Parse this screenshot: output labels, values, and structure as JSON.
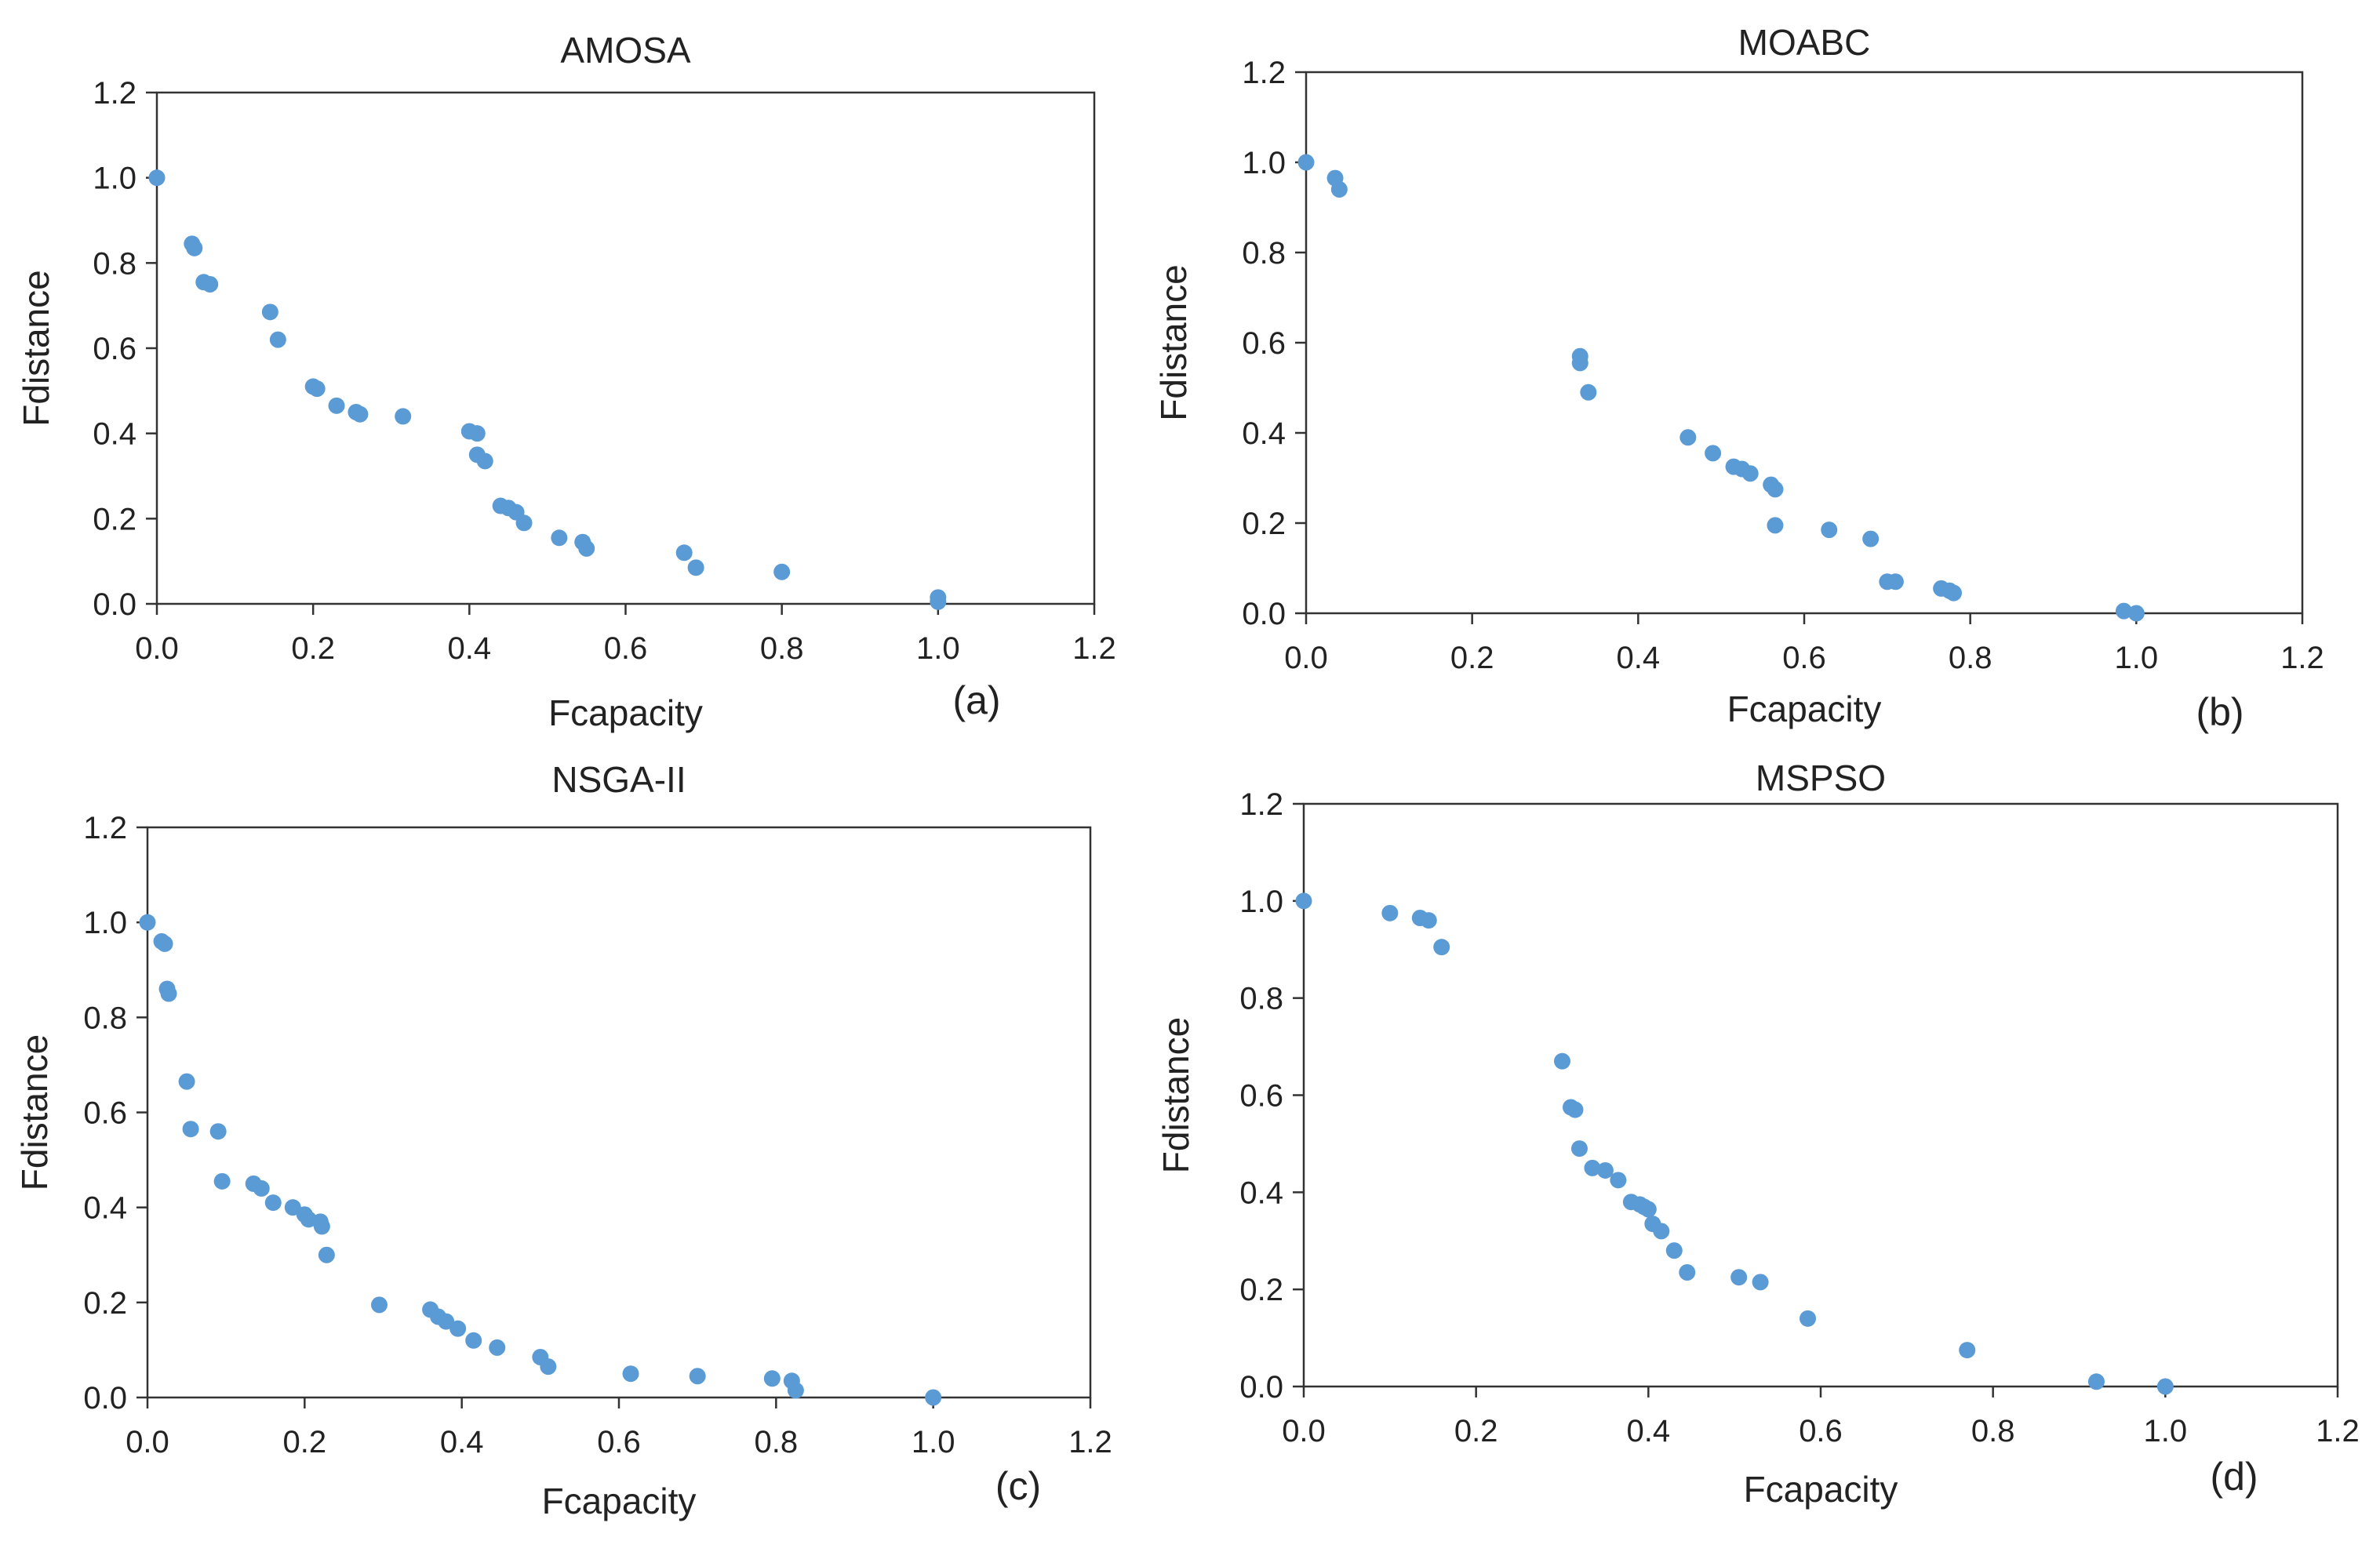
{
  "chart_data": [
    {
      "type": "scatter",
      "title": "AMOSA",
      "xlabel": "Fcapacity",
      "ylabel": "Fdistance",
      "panel_label": "(a)",
      "xlim": [
        0,
        1.2
      ],
      "ylim": [
        0,
        1.2
      ],
      "xticks": [
        "0.0",
        "0.2",
        "0.4",
        "0.6",
        "0.8",
        "1.0",
        "1.2"
      ],
      "yticks": [
        "0.0",
        "0.2",
        "0.4",
        "0.6",
        "0.8",
        "1.0",
        "1.2"
      ],
      "grid": false,
      "point_color": "#5b9bd5",
      "points": [
        [
          0.0,
          1.0
        ],
        [
          0.045,
          0.845
        ],
        [
          0.048,
          0.835
        ],
        [
          0.06,
          0.755
        ],
        [
          0.068,
          0.75
        ],
        [
          0.145,
          0.685
        ],
        [
          0.155,
          0.62
        ],
        [
          0.2,
          0.51
        ],
        [
          0.205,
          0.505
        ],
        [
          0.23,
          0.465
        ],
        [
          0.255,
          0.45
        ],
        [
          0.26,
          0.445
        ],
        [
          0.315,
          0.44
        ],
        [
          0.4,
          0.405
        ],
        [
          0.41,
          0.4
        ],
        [
          0.41,
          0.35
        ],
        [
          0.42,
          0.335
        ],
        [
          0.44,
          0.23
        ],
        [
          0.45,
          0.225
        ],
        [
          0.46,
          0.215
        ],
        [
          0.47,
          0.19
        ],
        [
          0.515,
          0.155
        ],
        [
          0.545,
          0.145
        ],
        [
          0.55,
          0.13
        ],
        [
          0.675,
          0.12
        ],
        [
          0.69,
          0.085
        ],
        [
          0.8,
          0.075
        ],
        [
          1.0,
          0.015
        ],
        [
          1.0,
          0.005
        ]
      ]
    },
    {
      "type": "scatter",
      "title": "MOABC",
      "xlabel": "Fcapacity",
      "ylabel": "Fdistance",
      "panel_label": "(b)",
      "xlim": [
        0,
        1.2
      ],
      "ylim": [
        0,
        1.2
      ],
      "xticks": [
        "0.0",
        "0.2",
        "0.4",
        "0.6",
        "0.8",
        "1.0",
        "1.2"
      ],
      "yticks": [
        "0.0",
        "0.2",
        "0.4",
        "0.6",
        "0.8",
        "1.0",
        "1.2"
      ],
      "grid": false,
      "point_color": "#5b9bd5",
      "points": [
        [
          0.0,
          1.0
        ],
        [
          0.035,
          0.965
        ],
        [
          0.04,
          0.94
        ],
        [
          0.33,
          0.57
        ],
        [
          0.33,
          0.555
        ],
        [
          0.34,
          0.49
        ],
        [
          0.46,
          0.39
        ],
        [
          0.49,
          0.355
        ],
        [
          0.515,
          0.325
        ],
        [
          0.525,
          0.32
        ],
        [
          0.535,
          0.31
        ],
        [
          0.56,
          0.285
        ],
        [
          0.565,
          0.275
        ],
        [
          0.565,
          0.195
        ],
        [
          0.63,
          0.185
        ],
        [
          0.68,
          0.165
        ],
        [
          0.7,
          0.07
        ],
        [
          0.71,
          0.07
        ],
        [
          0.765,
          0.055
        ],
        [
          0.775,
          0.05
        ],
        [
          0.78,
          0.045
        ],
        [
          0.985,
          0.005
        ],
        [
          1.0,
          0.0
        ]
      ]
    },
    {
      "type": "scatter",
      "title": "NSGA-II",
      "xlabel": "Fcapacity",
      "ylabel": "Fdistance",
      "panel_label": "(c)",
      "xlim": [
        0,
        1.2
      ],
      "ylim": [
        0,
        1.2
      ],
      "xticks": [
        "0.0",
        "0.2",
        "0.4",
        "0.6",
        "0.8",
        "1.0",
        "1.2"
      ],
      "yticks": [
        "0.0",
        "0.2",
        "0.4",
        "0.6",
        "0.8",
        "1.0",
        "1.2"
      ],
      "grid": false,
      "point_color": "#5b9bd5",
      "points": [
        [
          0.0,
          1.0
        ],
        [
          0.018,
          0.96
        ],
        [
          0.022,
          0.955
        ],
        [
          0.025,
          0.86
        ],
        [
          0.027,
          0.85
        ],
        [
          0.05,
          0.665
        ],
        [
          0.055,
          0.565
        ],
        [
          0.09,
          0.56
        ],
        [
          0.095,
          0.455
        ],
        [
          0.135,
          0.45
        ],
        [
          0.145,
          0.44
        ],
        [
          0.16,
          0.41
        ],
        [
          0.185,
          0.4
        ],
        [
          0.2,
          0.385
        ],
        [
          0.205,
          0.375
        ],
        [
          0.22,
          0.37
        ],
        [
          0.222,
          0.36
        ],
        [
          0.228,
          0.3
        ],
        [
          0.295,
          0.195
        ],
        [
          0.36,
          0.185
        ],
        [
          0.37,
          0.17
        ],
        [
          0.38,
          0.16
        ],
        [
          0.395,
          0.145
        ],
        [
          0.415,
          0.12
        ],
        [
          0.445,
          0.105
        ],
        [
          0.5,
          0.085
        ],
        [
          0.51,
          0.065
        ],
        [
          0.615,
          0.05
        ],
        [
          0.7,
          0.045
        ],
        [
          0.795,
          0.04
        ],
        [
          0.82,
          0.035
        ],
        [
          0.825,
          0.015
        ],
        [
          1.0,
          0.0
        ]
      ]
    },
    {
      "type": "scatter",
      "title": "MSPSO",
      "xlabel": "Fcapacity",
      "ylabel": "Fdistance",
      "panel_label": "(d)",
      "xlim": [
        0,
        1.2
      ],
      "ylim": [
        0,
        1.2
      ],
      "xticks": [
        "0.0",
        "0.2",
        "0.4",
        "0.6",
        "0.8",
        "1.0",
        "1.2"
      ],
      "yticks": [
        "0.0",
        "0.2",
        "0.4",
        "0.6",
        "0.8",
        "1.0",
        "1.2"
      ],
      "grid": false,
      "point_color": "#5b9bd5",
      "points": [
        [
          0.0,
          1.0
        ],
        [
          0.1,
          0.975
        ],
        [
          0.135,
          0.965
        ],
        [
          0.145,
          0.96
        ],
        [
          0.16,
          0.905
        ],
        [
          0.3,
          0.67
        ],
        [
          0.31,
          0.575
        ],
        [
          0.315,
          0.57
        ],
        [
          0.32,
          0.49
        ],
        [
          0.335,
          0.45
        ],
        [
          0.35,
          0.445
        ],
        [
          0.365,
          0.425
        ],
        [
          0.38,
          0.38
        ],
        [
          0.39,
          0.375
        ],
        [
          0.395,
          0.37
        ],
        [
          0.4,
          0.365
        ],
        [
          0.405,
          0.335
        ],
        [
          0.415,
          0.32
        ],
        [
          0.43,
          0.28
        ],
        [
          0.445,
          0.235
        ],
        [
          0.505,
          0.225
        ],
        [
          0.53,
          0.215
        ],
        [
          0.585,
          0.14
        ],
        [
          0.77,
          0.075
        ],
        [
          0.92,
          0.01
        ],
        [
          1.0,
          0.0
        ]
      ]
    }
  ]
}
